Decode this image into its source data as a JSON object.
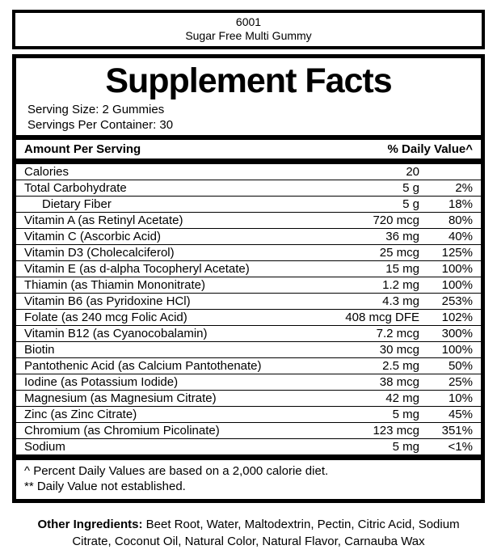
{
  "product_box": {
    "code": "6001",
    "name": "Sugar Free Multi Gummy"
  },
  "panel": {
    "title": "Supplement Facts",
    "serving_size": "Serving Size: 2 Gummies",
    "servings_per_container": "Servings Per Container: 30",
    "table": {
      "header": {
        "left": "Amount Per Serving",
        "right": "% Daily Value^"
      },
      "rows": [
        {
          "name": "Calories",
          "amount": "20",
          "dv": "",
          "indent": false
        },
        {
          "name": "Total Carbohydrate",
          "amount": "5 g",
          "dv": "2%",
          "indent": false
        },
        {
          "name": "Dietary Fiber",
          "amount": "5 g",
          "dv": "18%",
          "indent": true
        },
        {
          "name": "Vitamin A (as Retinyl Acetate)",
          "amount": "720 mcg",
          "dv": "80%",
          "indent": false
        },
        {
          "name": "Vitamin C (Ascorbic Acid)",
          "amount": "36 mg",
          "dv": "40%",
          "indent": false
        },
        {
          "name": "Vitamin D3 (Cholecalciferol)",
          "amount": "25 mcg",
          "dv": "125%",
          "indent": false
        },
        {
          "name": "Vitamin E (as d-alpha Tocopheryl Acetate)",
          "amount": "15 mg",
          "dv": "100%",
          "indent": false
        },
        {
          "name": "Thiamin (as Thiamin Mononitrate)",
          "amount": "1.2 mg",
          "dv": "100%",
          "indent": false
        },
        {
          "name": "Vitamin B6 (as Pyridoxine HCl)",
          "amount": "4.3 mg",
          "dv": "253%",
          "indent": false
        },
        {
          "name": "Folate (as 240 mcg Folic Acid)",
          "amount": "408 mcg DFE",
          "dv": "102%",
          "indent": false
        },
        {
          "name": "Vitamin B12 (as Cyanocobalamin)",
          "amount": "7.2 mcg",
          "dv": "300%",
          "indent": false
        },
        {
          "name": "Biotin",
          "amount": "30 mcg",
          "dv": "100%",
          "indent": false
        },
        {
          "name": "Pantothenic Acid (as Calcium Pantothenate)",
          "amount": "2.5 mg",
          "dv": "50%",
          "indent": false
        },
        {
          "name": "Iodine (as Potassium Iodide)",
          "amount": "38 mcg",
          "dv": "25%",
          "indent": false
        },
        {
          "name": "Magnesium (as Magnesium Citrate)",
          "amount": "42 mg",
          "dv": "10%",
          "indent": false
        },
        {
          "name": "Zinc (as Zinc Citrate)",
          "amount": "5 mg",
          "dv": "45%",
          "indent": false
        },
        {
          "name": "Chromium (as Chromium Picolinate)",
          "amount": "123 mcg",
          "dv": "351%",
          "indent": false
        },
        {
          "name": "Sodium",
          "amount": "5 mg",
          "dv": "<1%",
          "indent": false
        }
      ]
    },
    "footnotes": [
      "^ Percent Daily Values are based on a 2,000 calorie diet.",
      "** Daily Value not established."
    ]
  },
  "other_ingredients": {
    "label": "Other Ingredients:",
    "text": "Beet Root, Water, Maltodextrin, Pectin, Citric Acid, Sodium Citrate, Coconut Oil, Natural Color, Natural Flavor, Carnauba Wax"
  },
  "colors": {
    "text": "#000000",
    "background": "#ffffff",
    "rule": "#000000"
  }
}
